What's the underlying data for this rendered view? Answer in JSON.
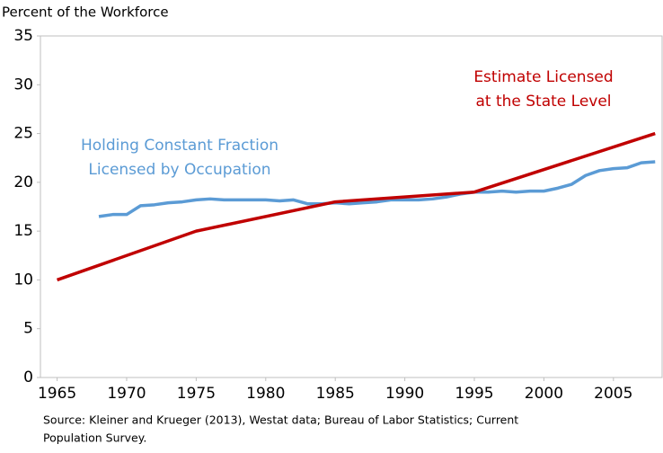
{
  "chart_data": {
    "type": "line",
    "y_label": "Percent of the Workforce",
    "xlim": [
      1963.8,
      2008.5
    ],
    "xticks": [
      1965,
      1970,
      1975,
      1980,
      1985,
      1990,
      1995,
      2000,
      2005
    ],
    "ylim": [
      0,
      35
    ],
    "yticks": [
      0,
      5,
      10,
      15,
      20,
      25,
      30,
      35
    ],
    "grid": false,
    "series": [
      {
        "name": "Holding Constant Fraction Licensed by Occupation",
        "color": "#5b9bd5",
        "x": [
          1968,
          1969,
          1970,
          1971,
          1972,
          1973,
          1974,
          1975,
          1976,
          1977,
          1978,
          1979,
          1980,
          1981,
          1982,
          1983,
          1984,
          1985,
          1986,
          1987,
          1988,
          1989,
          1990,
          1991,
          1992,
          1993,
          1994,
          1995,
          1996,
          1997,
          1998,
          1999,
          2000,
          2001,
          2002,
          2003,
          2004,
          2005,
          2006,
          2007,
          2008
        ],
        "values": [
          16.5,
          16.7,
          16.7,
          17.6,
          17.7,
          17.9,
          18.0,
          18.2,
          18.3,
          18.2,
          18.2,
          18.2,
          18.2,
          18.1,
          18.2,
          17.8,
          17.8,
          17.9,
          17.8,
          17.9,
          18.0,
          18.2,
          18.2,
          18.2,
          18.3,
          18.5,
          18.8,
          19.0,
          19.0,
          19.1,
          19.0,
          19.1,
          19.1,
          19.4,
          19.8,
          20.7,
          21.2,
          21.4,
          21.5,
          22.0,
          22.1
        ]
      },
      {
        "name": "Estimate Licensed at the State Level",
        "color": "#c00000",
        "x": [
          1965,
          1975,
          1985,
          1995,
          2008
        ],
        "values": [
          10,
          15,
          18,
          19,
          25
        ]
      }
    ],
    "annotations": [
      {
        "lines": [
          "Holding Constant Fraction",
          "Licensed by Occupation"
        ],
        "color": "#5b9bd5"
      },
      {
        "lines": [
          "Estimate Licensed",
          "at the State Level"
        ],
        "color": "#c00000"
      }
    ],
    "source": [
      "Source: Kleiner and Krueger (2013), Westat data; Bureau of Labor Statistics; Current",
      "Population Survey."
    ]
  }
}
